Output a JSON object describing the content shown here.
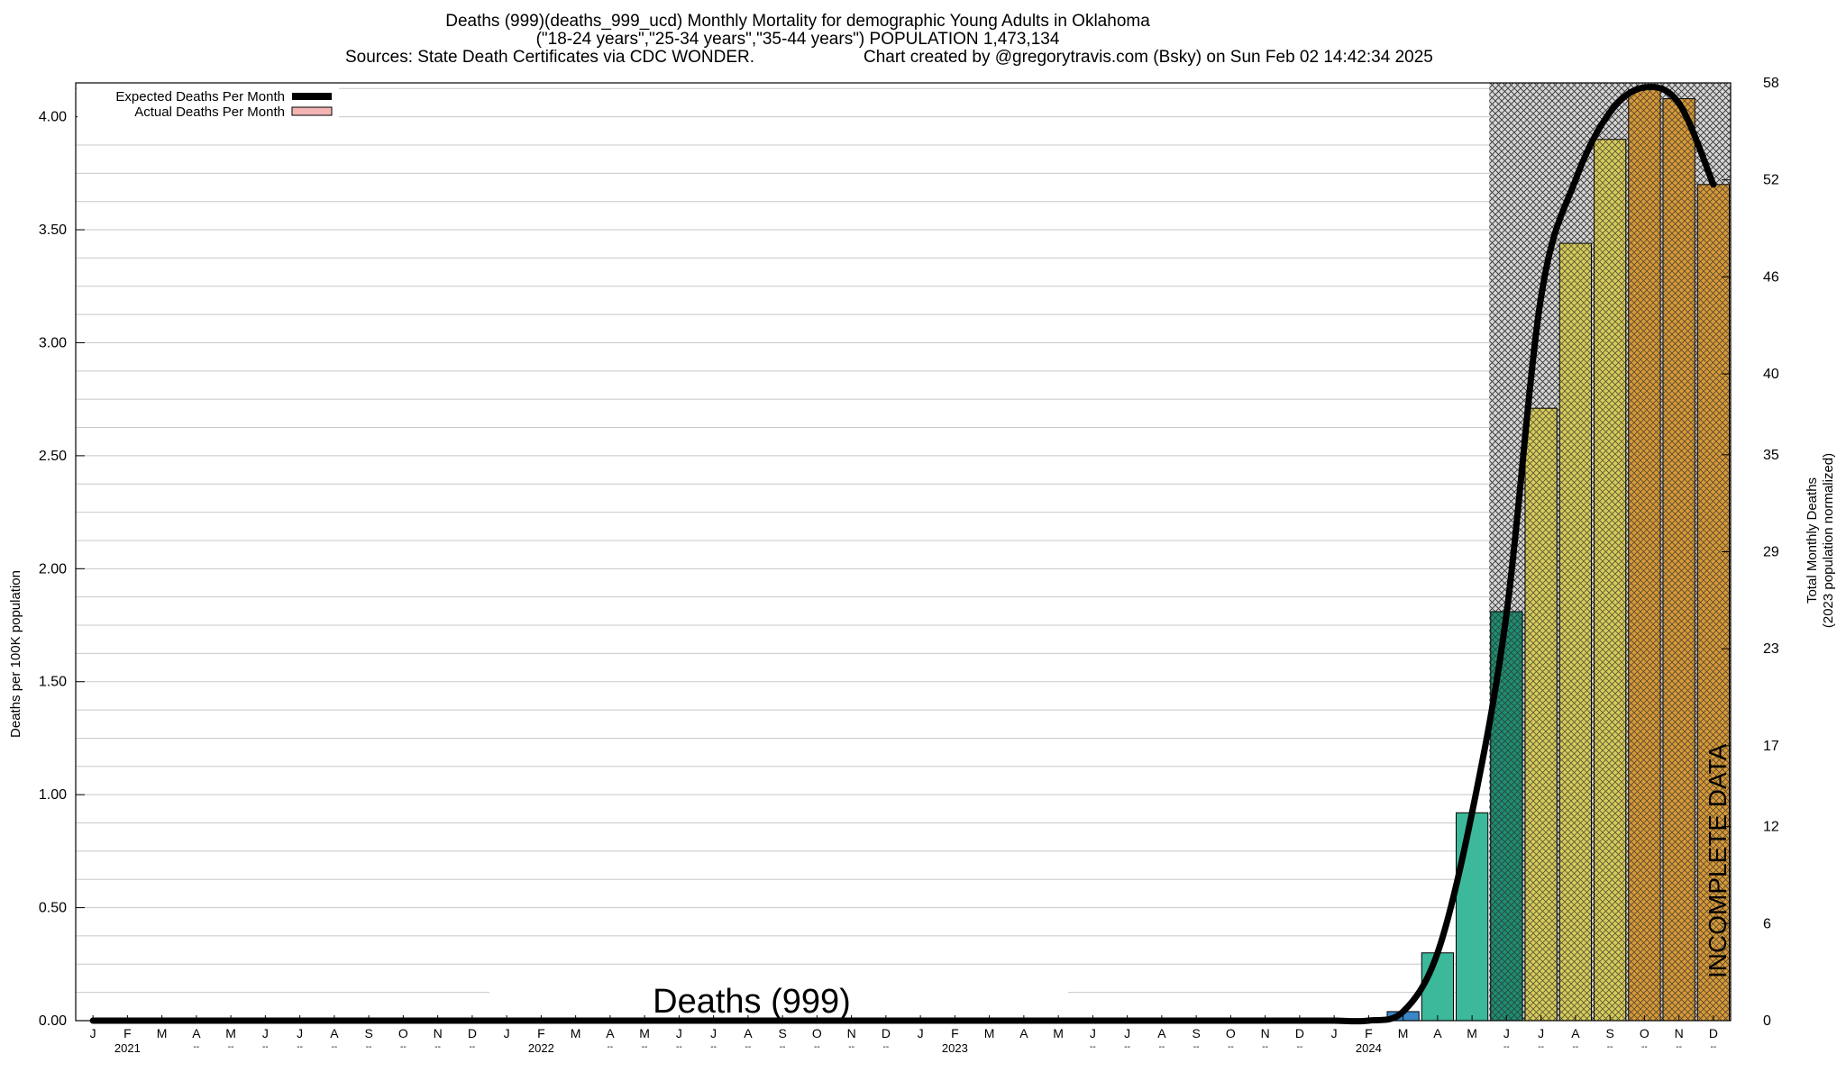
{
  "title": {
    "line1": "Deaths (999)(deaths_999_ucd) Monthly Mortality for demographic Young Adults in Oklahoma",
    "line2": "(\"18-24 years\",\"25-34 years\",\"35-44 years\") POPULATION 1,473,134",
    "line3_left": "Sources: State Death Certificates via CDC WONDER.",
    "line3_right": "Chart created by @gregorytravis.com (Bsky) on Sun Feb 02 14:42:34 2025"
  },
  "chart_data": {
    "type": "bar",
    "ylabel": "Deaths per 100K population",
    "ylabel_right_line1": "Total Monthly Deaths",
    "ylabel_right_line2": "(2023 population normalized)",
    "ylim": [
      0,
      4.15
    ],
    "yticks": [
      "0.00",
      "0.50",
      "1.00",
      "1.50",
      "2.00",
      "2.50",
      "3.00",
      "3.50",
      "4.00"
    ],
    "ytick_values": [
      0,
      0.5,
      1.0,
      1.5,
      2.0,
      2.5,
      3.0,
      3.5,
      4.0
    ],
    "yticks_right": [
      "0",
      "6",
      "12",
      "17",
      "23",
      "29",
      "35",
      "40",
      "46",
      "52",
      "58"
    ],
    "ytick_right_values": [
      0,
      6,
      12,
      17,
      23,
      29,
      35,
      40,
      46,
      52,
      58
    ],
    "y2lim": [
      0,
      58
    ],
    "grid": true,
    "legend_position": "top-left",
    "legend": [
      {
        "name": "Expected Deaths Per Month",
        "color": "#000000"
      },
      {
        "name": "Actual Deaths Per Month",
        "color": "#f4b4b4"
      }
    ],
    "month_labels": [
      "J",
      "F",
      "M",
      "A",
      "M",
      "J",
      "J",
      "A",
      "S",
      "O",
      "N",
      "D",
      "J",
      "F",
      "M",
      "A",
      "M",
      "J",
      "J",
      "A",
      "S",
      "O",
      "N",
      "D",
      "J",
      "F",
      "M",
      "A",
      "M",
      "J",
      "J",
      "A",
      "S",
      "O",
      "N",
      "D",
      "J",
      "F",
      "M",
      "A",
      "M",
      "J",
      "J",
      "A",
      "S",
      "O",
      "N",
      "D"
    ],
    "year_labels": [
      {
        "text": "2021",
        "index": 1
      },
      {
        "text": "2022",
        "index": 13
      },
      {
        "text": "2023",
        "index": 25
      },
      {
        "text": "2024",
        "index": 37
      }
    ],
    "dash_marker": "--",
    "dash_indices": [
      3,
      4,
      5,
      6,
      7,
      8,
      9,
      10,
      11,
      15,
      16,
      17,
      18,
      19,
      20,
      21,
      22,
      23,
      29,
      30,
      31,
      32,
      33,
      34,
      35,
      41,
      42,
      43,
      44,
      45,
      46,
      47
    ],
    "actual_values": [
      0,
      0,
      0,
      0,
      0,
      0,
      0,
      0,
      0,
      0,
      0,
      0,
      0,
      0,
      0,
      0,
      0,
      0,
      0,
      0,
      0,
      0,
      0,
      0,
      0,
      0,
      0,
      0,
      0,
      0,
      0,
      0,
      0,
      0,
      0,
      0,
      0,
      0,
      0.04,
      0.3,
      0.92,
      1.81,
      2.71,
      3.44,
      3.9,
      4.12,
      4.08,
      3.7
    ],
    "expected_values": [
      0,
      0,
      0,
      0,
      0,
      0,
      0,
      0,
      0,
      0,
      0,
      0,
      0,
      0,
      0,
      0,
      0,
      0,
      0,
      0,
      0,
      0,
      0,
      0,
      0,
      0,
      0,
      0,
      0,
      0,
      0,
      0,
      0,
      0,
      0,
      0,
      0,
      0,
      0.04,
      0.3,
      0.92,
      1.8,
      3.2,
      3.72,
      4.02,
      4.13,
      4.06,
      3.7
    ],
    "bar_colors": {
      "mar": "#3a86c8",
      "teal": "#3cb89a",
      "dark_teal": "#1f8e72",
      "yellow": "#d8cc5a",
      "orange": "#d89a38"
    },
    "incomplete_from_index": 41,
    "incomplete_label": "INCOMPLETE DATA",
    "annotation": "Deaths (999)"
  }
}
